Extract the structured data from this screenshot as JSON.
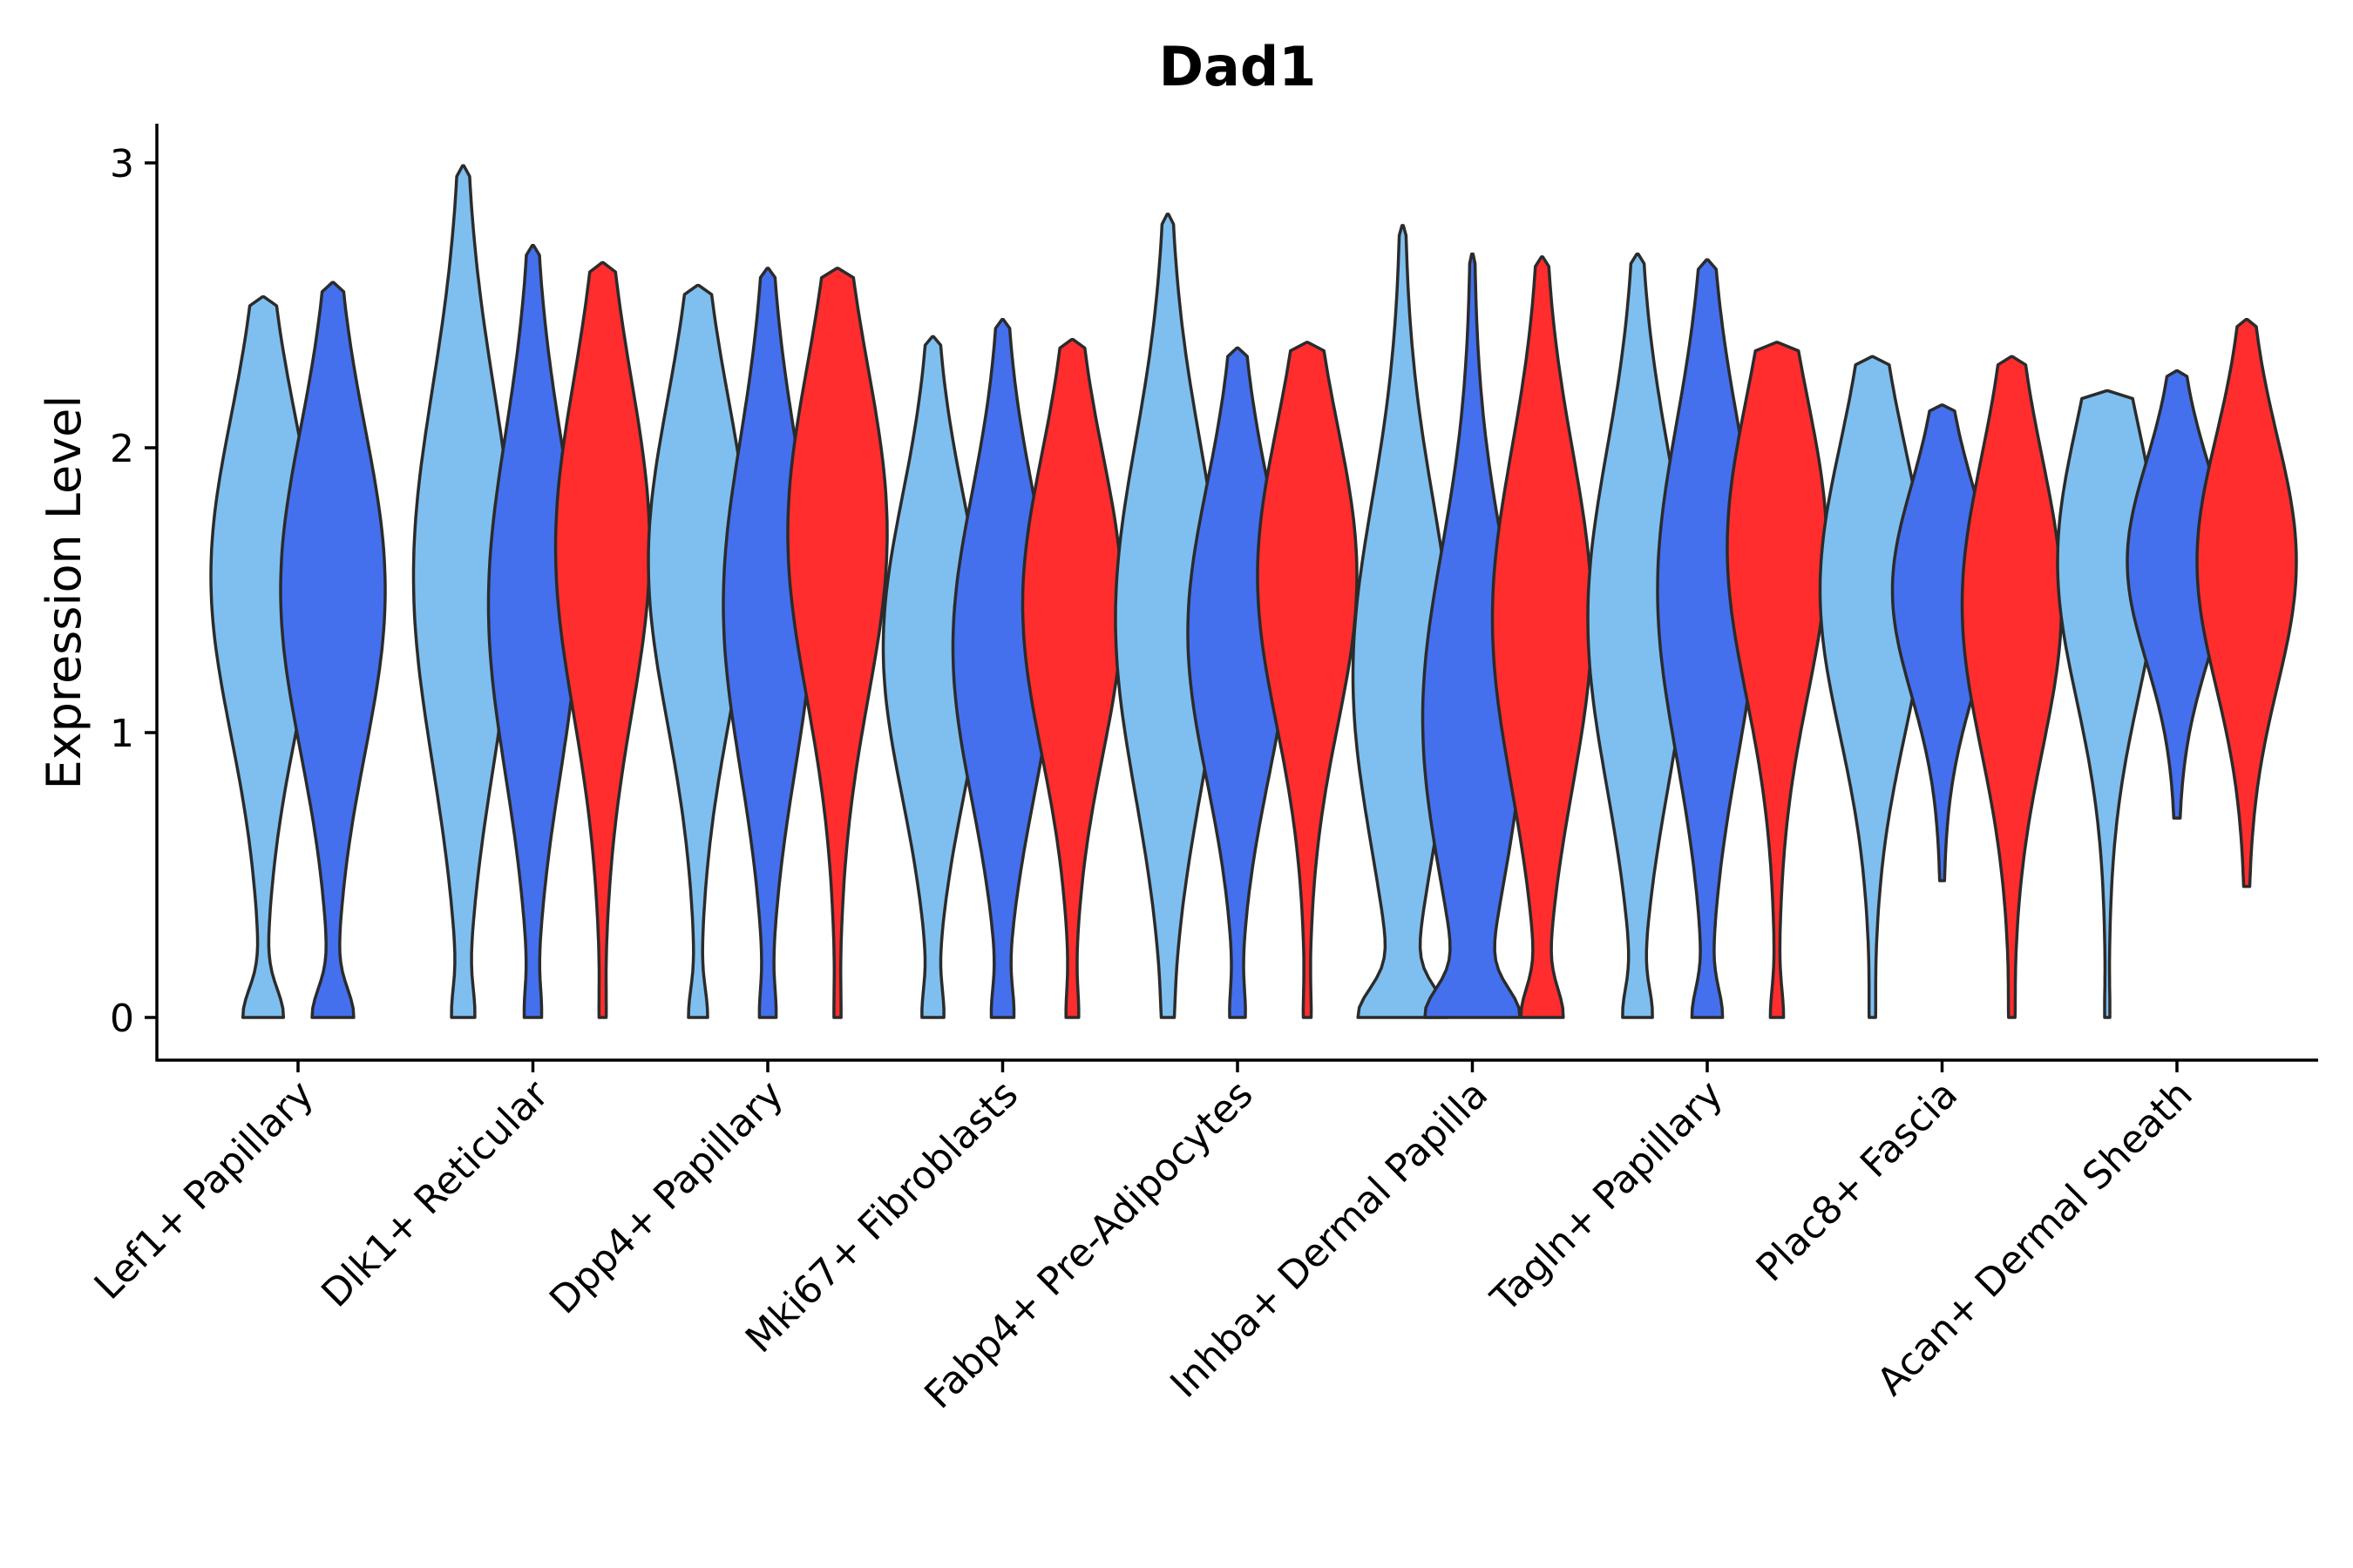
{
  "chart_data": {
    "type": "violin",
    "title": "Dad1",
    "xlabel": "",
    "ylabel": "Expression Level",
    "ylim": [
      -0.15,
      3.15
    ],
    "yticks": [
      0,
      1,
      2,
      3
    ],
    "categories": [
      "Lef1+ Papillary",
      "Dlk1+ Reticular",
      "Dpp4+ Papillary",
      "Mki67+ Fibroblasts",
      "Fabp4+ Pre-Adipocytes",
      "Inhba+ Dermal Papilla",
      "Tagln+ Papillary",
      "Plac8+ Fascia",
      "Acan+ Dermal Sheath"
    ],
    "groups": [
      {
        "name": "group-1",
        "color": "#7FBFEF"
      },
      {
        "name": "group-2",
        "color": "#4470EE"
      },
      {
        "name": "group-3",
        "color": "#FF2D2D"
      }
    ],
    "violins": [
      {
        "category": 0,
        "group": 0,
        "min": 0,
        "max": 2.53,
        "mode": 1.55,
        "zero": 0.35,
        "width": 1.0
      },
      {
        "category": 0,
        "group": 1,
        "min": 0,
        "max": 2.58,
        "mode": 1.5,
        "zero": 0.35,
        "width": 1.0
      },
      {
        "category": 1,
        "group": 0,
        "min": 0,
        "max": 2.99,
        "mode": 1.55,
        "zero": 0.15,
        "width": 0.95
      },
      {
        "category": 1,
        "group": 1,
        "min": 0,
        "max": 2.71,
        "mode": 1.45,
        "zero": 0.12,
        "width": 0.85
      },
      {
        "category": 1,
        "group": 2,
        "min": 0,
        "max": 2.65,
        "mode": 1.65,
        "zero": 0.03,
        "width": 0.9
      },
      {
        "category": 2,
        "group": 0,
        "min": 0,
        "max": 2.57,
        "mode": 1.6,
        "zero": 0.15,
        "width": 0.95
      },
      {
        "category": 2,
        "group": 1,
        "min": 0,
        "max": 2.63,
        "mode": 1.45,
        "zero": 0.12,
        "width": 0.85
      },
      {
        "category": 2,
        "group": 2,
        "min": 0,
        "max": 2.63,
        "mode": 1.7,
        "zero": 0.03,
        "width": 0.95
      },
      {
        "category": 3,
        "group": 0,
        "min": 0,
        "max": 2.39,
        "mode": 1.3,
        "zero": 0.15,
        "width": 0.95
      },
      {
        "category": 3,
        "group": 1,
        "min": 0,
        "max": 2.45,
        "mode": 1.3,
        "zero": 0.15,
        "width": 0.95
      },
      {
        "category": 3,
        "group": 2,
        "min": 0,
        "max": 2.38,
        "mode": 1.45,
        "zero": 0.08,
        "width": 0.95
      },
      {
        "category": 4,
        "group": 0,
        "min": 0,
        "max": 2.82,
        "mode": 1.4,
        "zero": 0.02,
        "width": 1.0
      },
      {
        "category": 4,
        "group": 1,
        "min": 0,
        "max": 2.35,
        "mode": 1.35,
        "zero": 0.1,
        "width": 0.95
      },
      {
        "category": 4,
        "group": 2,
        "min": 0,
        "max": 2.37,
        "mode": 1.55,
        "zero": 0.04,
        "width": 0.95
      },
      {
        "category": 5,
        "group": 0,
        "min": 0,
        "max": 2.78,
        "mode": 1.2,
        "zero": 0.75,
        "width": 0.95
      },
      {
        "category": 5,
        "group": 1,
        "min": 0,
        "max": 2.68,
        "mode": 1.05,
        "zero": 0.75,
        "width": 0.95
      },
      {
        "category": 5,
        "group": 2,
        "min": 0,
        "max": 2.67,
        "mode": 1.4,
        "zero": 0.35,
        "width": 0.95
      },
      {
        "category": 6,
        "group": 0,
        "min": 0,
        "max": 2.68,
        "mode": 1.4,
        "zero": 0.22,
        "width": 0.95
      },
      {
        "category": 6,
        "group": 1,
        "min": 0,
        "max": 2.66,
        "mode": 1.5,
        "zero": 0.25,
        "width": 0.95
      },
      {
        "category": 6,
        "group": 2,
        "min": 0,
        "max": 2.37,
        "mode": 1.65,
        "zero": 0.1,
        "width": 0.95
      },
      {
        "category": 7,
        "group": 0,
        "min": 0,
        "max": 2.32,
        "mode": 1.5,
        "zero": 0.02,
        "width": 1.0
      },
      {
        "category": 7,
        "group": 1,
        "min": 0.48,
        "max": 2.15,
        "mode": 1.5,
        "zero": 0.0,
        "width": 0.95
      },
      {
        "category": 7,
        "group": 2,
        "min": 0,
        "max": 2.32,
        "mode": 1.45,
        "zero": 0.02,
        "width": 0.95
      },
      {
        "category": 8,
        "group": 0,
        "min": 0,
        "max": 2.2,
        "mode": 1.6,
        "zero": 0.02,
        "width": 0.95
      },
      {
        "category": 8,
        "group": 1,
        "min": 0.7,
        "max": 2.27,
        "mode": 1.6,
        "zero": 0.0,
        "width": 0.95
      },
      {
        "category": 8,
        "group": 2,
        "min": 0.46,
        "max": 2.45,
        "mode": 1.6,
        "zero": 0.0,
        "width": 0.95
      }
    ]
  }
}
